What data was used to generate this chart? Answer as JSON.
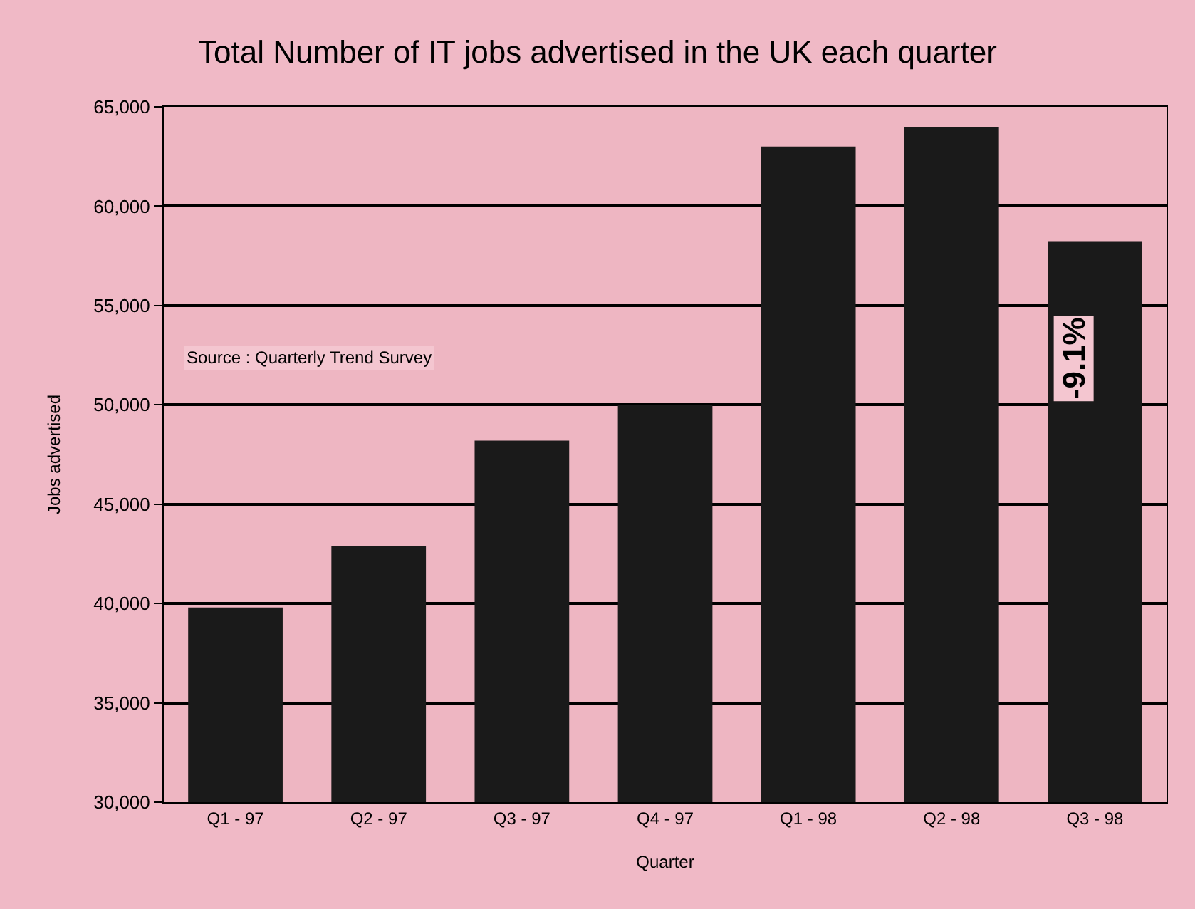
{
  "chart_data": {
    "type": "bar",
    "title": "Total Number of IT jobs advertised in the UK each quarter",
    "xlabel": "Quarter",
    "ylabel": "Jobs advertised",
    "categories": [
      "Q1 - 97",
      "Q2 - 97",
      "Q3 - 97",
      "Q4 - 97",
      "Q1 - 98",
      "Q2 - 98",
      "Q3 - 98"
    ],
    "values": [
      39800,
      42900,
      48200,
      50000,
      63000,
      64000,
      58200
    ],
    "color": "#1a1a1a",
    "ylim": [
      30000,
      65000
    ],
    "yticks": [
      {
        "value": 30000,
        "label": "30,000"
      },
      {
        "value": 35000,
        "label": "35,000"
      },
      {
        "value": 40000,
        "label": "40,000"
      },
      {
        "value": 45000,
        "label": "45,000"
      },
      {
        "value": 50000,
        "label": "50,000"
      },
      {
        "value": 55000,
        "label": "55,000"
      },
      {
        "value": 60000,
        "label": "60,000"
      },
      {
        "value": 65000,
        "label": "65,000"
      }
    ],
    "grid": "y",
    "annotations": [
      "-9.1%",
      "Source : Quarterly Trend Survey"
    ]
  }
}
